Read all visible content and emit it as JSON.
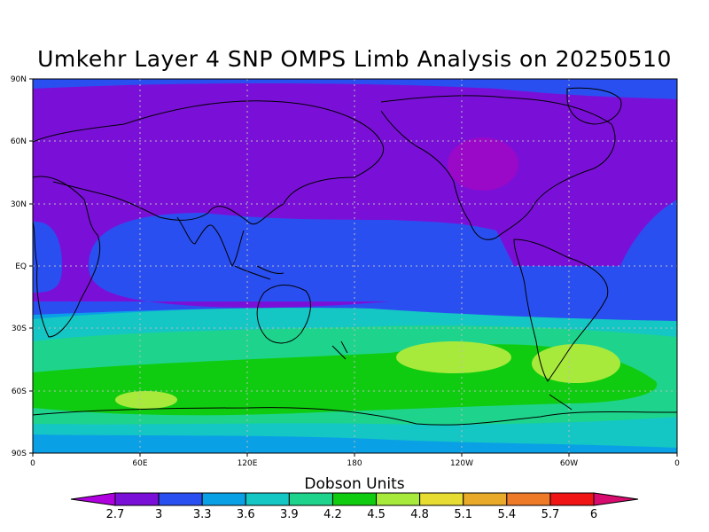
{
  "title": "Umkehr Layer 4 SNP OMPS Limb Analysis on 20250510",
  "lat_labels": [
    "90N",
    "60N",
    "30N",
    "EQ",
    "30S",
    "60S",
    "90S"
  ],
  "lon_labels": [
    "0",
    "60E",
    "120E",
    "180",
    "120W",
    "60W",
    "0"
  ],
  "colorbar": {
    "title": "Dobson Units",
    "ticks": [
      "2.7",
      "3",
      "3.3",
      "3.6",
      "3.9",
      "4.2",
      "4.5",
      "4.8",
      "5.1",
      "5.4",
      "5.7",
      "6"
    ],
    "colors": [
      "#b000e0",
      "#7a10d8",
      "#2a4ff0",
      "#0aa0e6",
      "#14c6c4",
      "#1ed48c",
      "#10cc10",
      "#a8ea3c",
      "#e6dc32",
      "#e8aa28",
      "#ee7a28",
      "#f01414",
      "#d80c6e"
    ]
  },
  "map_colors": {
    "band_1": "#7a10d8",
    "band_2": "#2a4ff0",
    "band_3": "#0aa0e6",
    "band_4": "#14c6c4",
    "band_5": "#1ed48c",
    "band_6": "#10cc10",
    "band_7": "#a8ea3c",
    "coast": "#000000",
    "grid": "#bbbbbb"
  }
}
